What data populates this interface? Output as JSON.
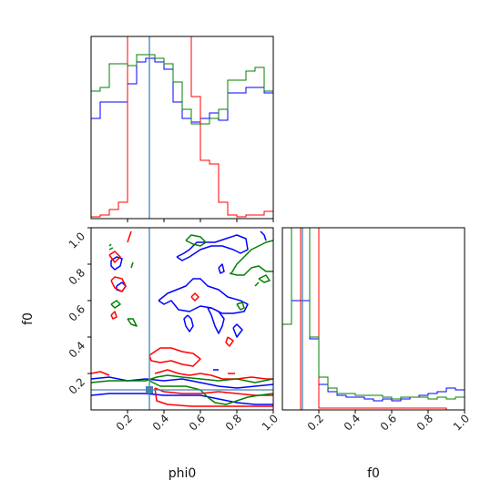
{
  "chart_data": {
    "type": "corner",
    "parameters": [
      "phi0",
      "f0"
    ],
    "truth": {
      "phi0": 0.32,
      "f0": 0.11
    },
    "truth_color": "#4682b4",
    "series": [
      {
        "color": "#0000ff"
      },
      {
        "color": "#ff0000"
      },
      {
        "color": "#008000"
      }
    ],
    "axis_labels": {
      "x1": "phi0",
      "x2": "f0",
      "y_left": "f0"
    },
    "ticks": {
      "phi0": [
        "0.2",
        "0.4",
        "0.6",
        "0.8",
        "1.0"
      ],
      "f0": [
        "0.2",
        "0.4",
        "0.6",
        "0.8",
        "1.0"
      ]
    },
    "ranges": {
      "phi0": [
        0,
        1
      ],
      "f0": [
        0,
        1
      ]
    },
    "hist_phi0": {
      "bins": 20,
      "blue": [
        0.55,
        0.64,
        0.64,
        0.64,
        0.74,
        0.86,
        0.88,
        0.86,
        0.82,
        0.64,
        0.55,
        0.53,
        0.55,
        0.58,
        0.54,
        0.69,
        0.69,
        0.72,
        0.72,
        0.69
      ],
      "red": [
        0.01,
        0.02,
        0.05,
        0.09,
        1.2,
        1.2,
        1.2,
        1.2,
        1.2,
        1.2,
        1.2,
        0.67,
        0.32,
        0.3,
        0.09,
        0.02,
        0.01,
        0.02,
        0.02,
        0.04
      ],
      "green": [
        0.7,
        0.72,
        0.85,
        0.85,
        0.84,
        0.9,
        0.9,
        0.88,
        0.85,
        0.75,
        0.6,
        0.52,
        0.52,
        0.55,
        0.6,
        0.76,
        0.76,
        0.81,
        0.83,
        0.7
      ]
    },
    "hist_f0": {
      "bins": 20,
      "blue": [
        0.47,
        0.6,
        0.6,
        0.39,
        0.14,
        0.1,
        0.08,
        0.07,
        0.07,
        0.06,
        0.05,
        0.06,
        0.05,
        0.06,
        0.07,
        0.08,
        0.09,
        0.1,
        0.12,
        0.11
      ],
      "red": [
        0.0,
        0.0,
        1.2,
        1.2,
        0.01,
        0.01,
        0.01,
        0.01,
        0.01,
        0.01,
        0.01,
        0.01,
        0.01,
        0.01,
        0.01,
        0.01,
        0.01,
        0.01,
        0.0,
        0.0
      ],
      "green": [
        0.47,
        1.2,
        1.2,
        0.4,
        0.18,
        0.12,
        0.09,
        0.09,
        0.08,
        0.08,
        0.08,
        0.07,
        0.06,
        0.07,
        0.07,
        0.07,
        0.06,
        0.07,
        0.06,
        0.07
      ]
    },
    "contours": {
      "blue": [
        [
          [
            0.37,
            0.6
          ],
          [
            0.42,
            0.64
          ],
          [
            0.47,
            0.66
          ],
          [
            0.52,
            0.68
          ],
          [
            0.56,
            0.72
          ],
          [
            0.6,
            0.72
          ],
          [
            0.64,
            0.68
          ],
          [
            0.7,
            0.66
          ],
          [
            0.75,
            0.62
          ],
          [
            0.82,
            0.6
          ],
          [
            0.86,
            0.58
          ],
          [
            0.84,
            0.54
          ],
          [
            0.78,
            0.53
          ],
          [
            0.72,
            0.53
          ],
          [
            0.66,
            0.56
          ],
          [
            0.6,
            0.57
          ],
          [
            0.54,
            0.54
          ],
          [
            0.48,
            0.55
          ],
          [
            0.44,
            0.6
          ],
          [
            0.4,
            0.58
          ],
          [
            0.37,
            0.6
          ]
        ],
        [
          [
            0.53,
            0.52
          ],
          [
            0.55,
            0.5
          ],
          [
            0.56,
            0.46
          ],
          [
            0.54,
            0.43
          ],
          [
            0.52,
            0.46
          ],
          [
            0.51,
            0.5
          ],
          [
            0.53,
            0.52
          ]
        ],
        [
          [
            0.64,
            0.56
          ],
          [
            0.66,
            0.52
          ],
          [
            0.68,
            0.46
          ],
          [
            0.7,
            0.42
          ],
          [
            0.72,
            0.46
          ],
          [
            0.73,
            0.5
          ],
          [
            0.7,
            0.54
          ],
          [
            0.66,
            0.56
          ],
          [
            0.64,
            0.56
          ]
        ],
        [
          [
            0.78,
            0.45
          ],
          [
            0.8,
            0.4
          ],
          [
            0.83,
            0.44
          ],
          [
            0.8,
            0.47
          ],
          [
            0.78,
            0.45
          ]
        ],
        [
          [
            0.47,
            0.84
          ],
          [
            0.51,
            0.86
          ],
          [
            0.54,
            0.88
          ],
          [
            0.58,
            0.92
          ],
          [
            0.62,
            0.92
          ],
          [
            0.68,
            0.92
          ],
          [
            0.74,
            0.94
          ],
          [
            0.8,
            0.96
          ],
          [
            0.85,
            0.94
          ],
          [
            0.86,
            0.88
          ],
          [
            0.82,
            0.86
          ],
          [
            0.78,
            0.88
          ],
          [
            0.72,
            0.9
          ],
          [
            0.66,
            0.9
          ],
          [
            0.6,
            0.88
          ],
          [
            0.54,
            0.84
          ],
          [
            0.5,
            0.82
          ],
          [
            0.47,
            0.84
          ]
        ],
        [
          [
            0.11,
            0.82
          ],
          [
            0.14,
            0.84
          ],
          [
            0.17,
            0.83
          ],
          [
            0.16,
            0.79
          ],
          [
            0.13,
            0.77
          ],
          [
            0.11,
            0.79
          ],
          [
            0.11,
            0.82
          ]
        ],
        [
          [
            0.14,
            0.68
          ],
          [
            0.17,
            0.7
          ],
          [
            0.19,
            0.68
          ],
          [
            0.17,
            0.65
          ],
          [
            0.14,
            0.66
          ],
          [
            0.14,
            0.68
          ]
        ],
        [
          [
            0.7,
            0.78
          ],
          [
            0.72,
            0.8
          ],
          [
            0.73,
            0.76
          ],
          [
            0.71,
            0.75
          ],
          [
            0.7,
            0.78
          ]
        ],
        [
          [
            0.0,
            0.17
          ],
          [
            0.1,
            0.18
          ],
          [
            0.2,
            0.16
          ],
          [
            0.3,
            0.17
          ],
          [
            0.4,
            0.16
          ],
          [
            0.5,
            0.17
          ],
          [
            0.6,
            0.15
          ],
          [
            0.7,
            0.13
          ],
          [
            0.8,
            0.12
          ],
          [
            0.9,
            0.13
          ],
          [
            1.0,
            0.14
          ]
        ],
        [
          [
            0.0,
            0.08
          ],
          [
            0.1,
            0.09
          ],
          [
            0.2,
            0.09
          ],
          [
            0.3,
            0.09
          ],
          [
            0.4,
            0.08
          ],
          [
            0.5,
            0.08
          ],
          [
            0.6,
            0.08
          ],
          [
            0.7,
            0.06
          ],
          [
            0.8,
            0.04
          ],
          [
            0.9,
            0.03
          ],
          [
            1.0,
            0.03
          ]
        ],
        [
          [
            0.67,
            0.22
          ],
          [
            0.7,
            0.22
          ]
        ],
        [
          [
            0.93,
            0.98
          ],
          [
            0.95,
            0.96
          ],
          [
            0.96,
            0.93
          ]
        ]
      ],
      "red": [
        [
          [
            0.11,
            0.71
          ],
          [
            0.13,
            0.73
          ],
          [
            0.17,
            0.72
          ],
          [
            0.19,
            0.68
          ],
          [
            0.17,
            0.65
          ],
          [
            0.13,
            0.67
          ],
          [
            0.11,
            0.71
          ]
        ],
        [
          [
            0.1,
            0.85
          ],
          [
            0.13,
            0.87
          ],
          [
            0.16,
            0.84
          ],
          [
            0.13,
            0.81
          ],
          [
            0.1,
            0.85
          ]
        ],
        [
          [
            0.11,
            0.52
          ],
          [
            0.13,
            0.54
          ],
          [
            0.14,
            0.51
          ],
          [
            0.12,
            0.5
          ],
          [
            0.11,
            0.52
          ]
        ],
        [
          [
            0.55,
            0.62
          ],
          [
            0.57,
            0.64
          ],
          [
            0.59,
            0.62
          ],
          [
            0.57,
            0.6
          ],
          [
            0.55,
            0.62
          ]
        ],
        [
          [
            0.32,
            0.3
          ],
          [
            0.38,
            0.34
          ],
          [
            0.44,
            0.34
          ],
          [
            0.5,
            0.32
          ],
          [
            0.56,
            0.31
          ],
          [
            0.6,
            0.28
          ],
          [
            0.56,
            0.24
          ],
          [
            0.5,
            0.25
          ],
          [
            0.44,
            0.27
          ],
          [
            0.38,
            0.26
          ],
          [
            0.33,
            0.27
          ],
          [
            0.32,
            0.3
          ]
        ],
        [
          [
            0.35,
            0.2
          ],
          [
            0.42,
            0.22
          ],
          [
            0.48,
            0.2
          ],
          [
            0.54,
            0.19
          ],
          [
            0.6,
            0.2
          ],
          [
            0.66,
            0.19
          ],
          [
            0.72,
            0.17
          ],
          [
            0.8,
            0.17
          ],
          [
            0.88,
            0.18
          ],
          [
            0.96,
            0.17
          ],
          [
            1.0,
            0.17
          ]
        ],
        [
          [
            0.0,
            0.2
          ],
          [
            0.05,
            0.21
          ],
          [
            0.1,
            0.19
          ]
        ],
        [
          [
            0.35,
            0.12
          ],
          [
            0.4,
            0.1
          ],
          [
            0.5,
            0.09
          ],
          [
            0.6,
            0.09
          ],
          [
            0.7,
            0.1
          ],
          [
            0.8,
            0.09
          ],
          [
            0.9,
            0.08
          ],
          [
            1.0,
            0.08
          ]
        ],
        [
          [
            0.35,
            0.12
          ],
          [
            0.36,
            0.05
          ],
          [
            0.42,
            0.03
          ],
          [
            0.55,
            0.02
          ],
          [
            0.7,
            0.02
          ],
          [
            0.85,
            0.02
          ],
          [
            1.0,
            0.02
          ]
        ],
        [
          [
            0.75,
            0.4
          ],
          [
            0.78,
            0.38
          ],
          [
            0.76,
            0.35
          ],
          [
            0.74,
            0.37
          ],
          [
            0.75,
            0.4
          ]
        ],
        [
          [
            0.2,
            0.92
          ],
          [
            0.22,
            0.98
          ]
        ],
        [
          [
            0.75,
            0.2
          ],
          [
            0.79,
            0.2
          ]
        ]
      ],
      "green": [
        [
          [
            0.52,
            0.93
          ],
          [
            0.56,
            0.91
          ],
          [
            0.6,
            0.9
          ],
          [
            0.63,
            0.92
          ],
          [
            0.6,
            0.95
          ],
          [
            0.55,
            0.96
          ],
          [
            0.52,
            0.93
          ]
        ],
        [
          [
            0.77,
            0.75
          ],
          [
            0.8,
            0.8
          ],
          [
            0.84,
            0.84
          ],
          [
            0.88,
            0.88
          ],
          [
            0.92,
            0.9
          ],
          [
            0.96,
            0.92
          ],
          [
            1.0,
            0.93
          ]
        ],
        [
          [
            0.76,
            0.75
          ],
          [
            0.8,
            0.74
          ],
          [
            0.84,
            0.74
          ],
          [
            0.88,
            0.78
          ],
          [
            0.92,
            0.79
          ],
          [
            0.96,
            0.76
          ],
          [
            1.0,
            0.76
          ]
        ],
        [
          [
            0.92,
            0.72
          ],
          [
            0.95,
            0.7
          ],
          [
            0.98,
            0.71
          ],
          [
            0.96,
            0.74
          ],
          [
            0.92,
            0.72
          ]
        ],
        [
          [
            0.1,
            0.88
          ],
          [
            0.12,
            0.89
          ]
        ],
        [
          [
            0.1,
            0.9
          ],
          [
            0.11,
            0.91
          ]
        ],
        [
          [
            0.22,
            0.78
          ],
          [
            0.23,
            0.81
          ]
        ],
        [
          [
            0.11,
            0.58
          ],
          [
            0.14,
            0.6
          ],
          [
            0.16,
            0.58
          ],
          [
            0.13,
            0.56
          ],
          [
            0.11,
            0.58
          ]
        ],
        [
          [
            0.2,
            0.5
          ],
          [
            0.22,
            0.47
          ],
          [
            0.25,
            0.46
          ],
          [
            0.23,
            0.5
          ],
          [
            0.2,
            0.5
          ]
        ],
        [
          [
            0.8,
            0.58
          ],
          [
            0.82,
            0.55
          ],
          [
            0.84,
            0.56
          ],
          [
            0.83,
            0.59
          ],
          [
            0.8,
            0.58
          ]
        ],
        [
          [
            0.0,
            0.15
          ],
          [
            0.1,
            0.16
          ],
          [
            0.2,
            0.16
          ],
          [
            0.3,
            0.16
          ],
          [
            0.36,
            0.18
          ],
          [
            0.42,
            0.19
          ],
          [
            0.5,
            0.18
          ],
          [
            0.6,
            0.17
          ],
          [
            0.7,
            0.16
          ],
          [
            0.8,
            0.17
          ],
          [
            0.9,
            0.15
          ],
          [
            1.0,
            0.17
          ]
        ],
        [
          [
            0.32,
            0.16
          ],
          [
            0.38,
            0.13
          ],
          [
            0.44,
            0.13
          ],
          [
            0.52,
            0.13
          ],
          [
            0.6,
            0.11
          ],
          [
            0.64,
            0.07
          ],
          [
            0.68,
            0.04
          ],
          [
            0.74,
            0.03
          ],
          [
            0.8,
            0.05
          ],
          [
            0.86,
            0.07
          ],
          [
            0.92,
            0.08
          ],
          [
            1.0,
            0.09
          ]
        ],
        [
          [
            0.9,
            0.68
          ],
          [
            0.92,
            0.7
          ]
        ]
      ]
    }
  }
}
